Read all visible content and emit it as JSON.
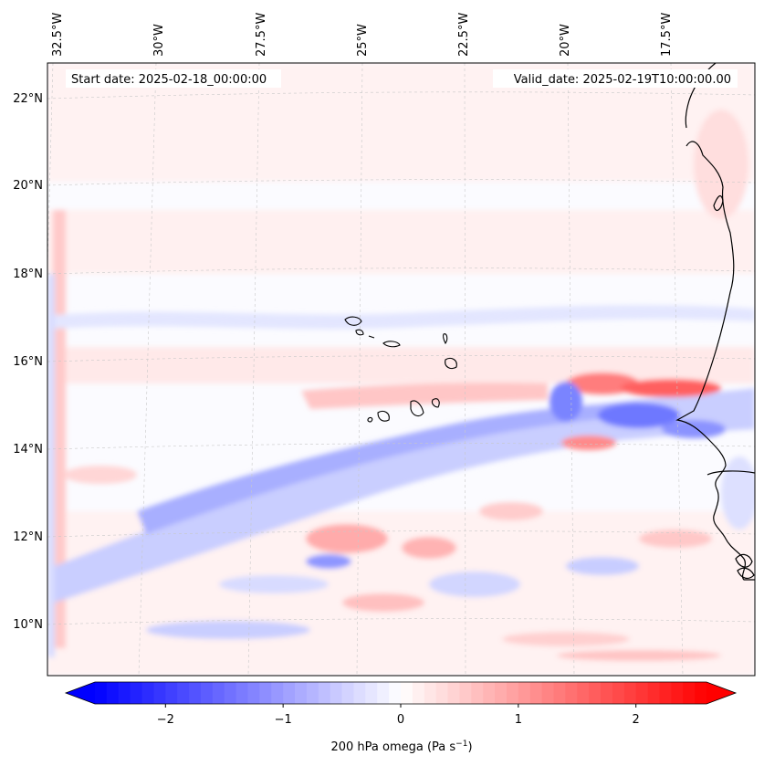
{
  "header": {
    "start_date": "Start date: 2025-02-18_00:00:00",
    "valid_date": "Valid_date: 2025-02-19T10:00:00.00"
  },
  "map": {
    "lon_labels": [
      "32.5°W",
      "30°W",
      "27.5°W",
      "25°W",
      "22.5°W",
      "20°W",
      "17.5°W"
    ],
    "lat_labels": [
      "22°N",
      "20°N",
      "18°N",
      "16°N",
      "14°N",
      "12°N",
      "10°N"
    ],
    "field": "200 hPa omega",
    "colors": {
      "negative": "#0000ff",
      "positive": "#ff0000",
      "neutral": "#ffffff"
    }
  },
  "colorbar": {
    "ticks": [
      "−2",
      "−1",
      "0",
      "1",
      "2"
    ],
    "tick_values": [
      -2,
      -1,
      0,
      1,
      2
    ],
    "range": [
      -2.6,
      2.6
    ],
    "label_main": "200 hPa omega (Pa s",
    "label_exp": "−1",
    "label_close": ")"
  }
}
